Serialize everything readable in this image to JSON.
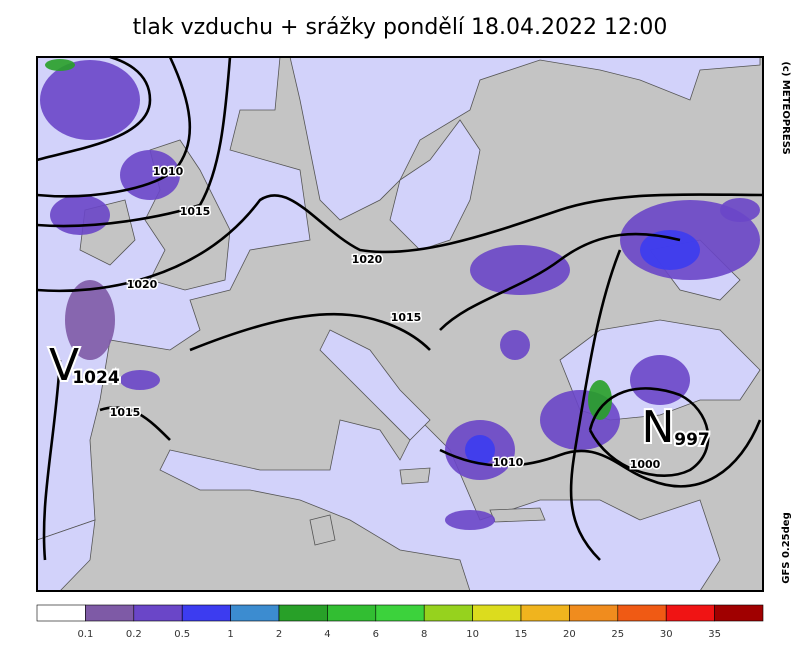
{
  "title": "tlak vzduchu + srážky pondělí 18.04.2022 12:00",
  "credit": "(c) METEOPRESS",
  "model": "GFS 0.25deg",
  "isobar_labels": [
    "1010",
    "1015",
    "1020",
    "1020",
    "1015",
    "1015",
    "1010",
    "1000"
  ],
  "pressure_centers": [
    {
      "letter": "V",
      "value": "1024"
    },
    {
      "letter": "N",
      "value": "997"
    }
  ],
  "legend": {
    "colors": [
      "#ffffff",
      "#7e5aa6",
      "#6a46c8",
      "#3c3cf0",
      "#3c8cd0",
      "#28a028",
      "#32be32",
      "#3cd23c",
      "#96d21e",
      "#dcdc1e",
      "#f0b41e",
      "#f08c1e",
      "#f05a14",
      "#f01414",
      "#a00000"
    ],
    "labels": [
      0.1,
      0.2,
      0.5,
      1,
      2,
      4,
      6,
      8,
      10,
      15,
      20,
      25,
      30,
      35
    ]
  }
}
